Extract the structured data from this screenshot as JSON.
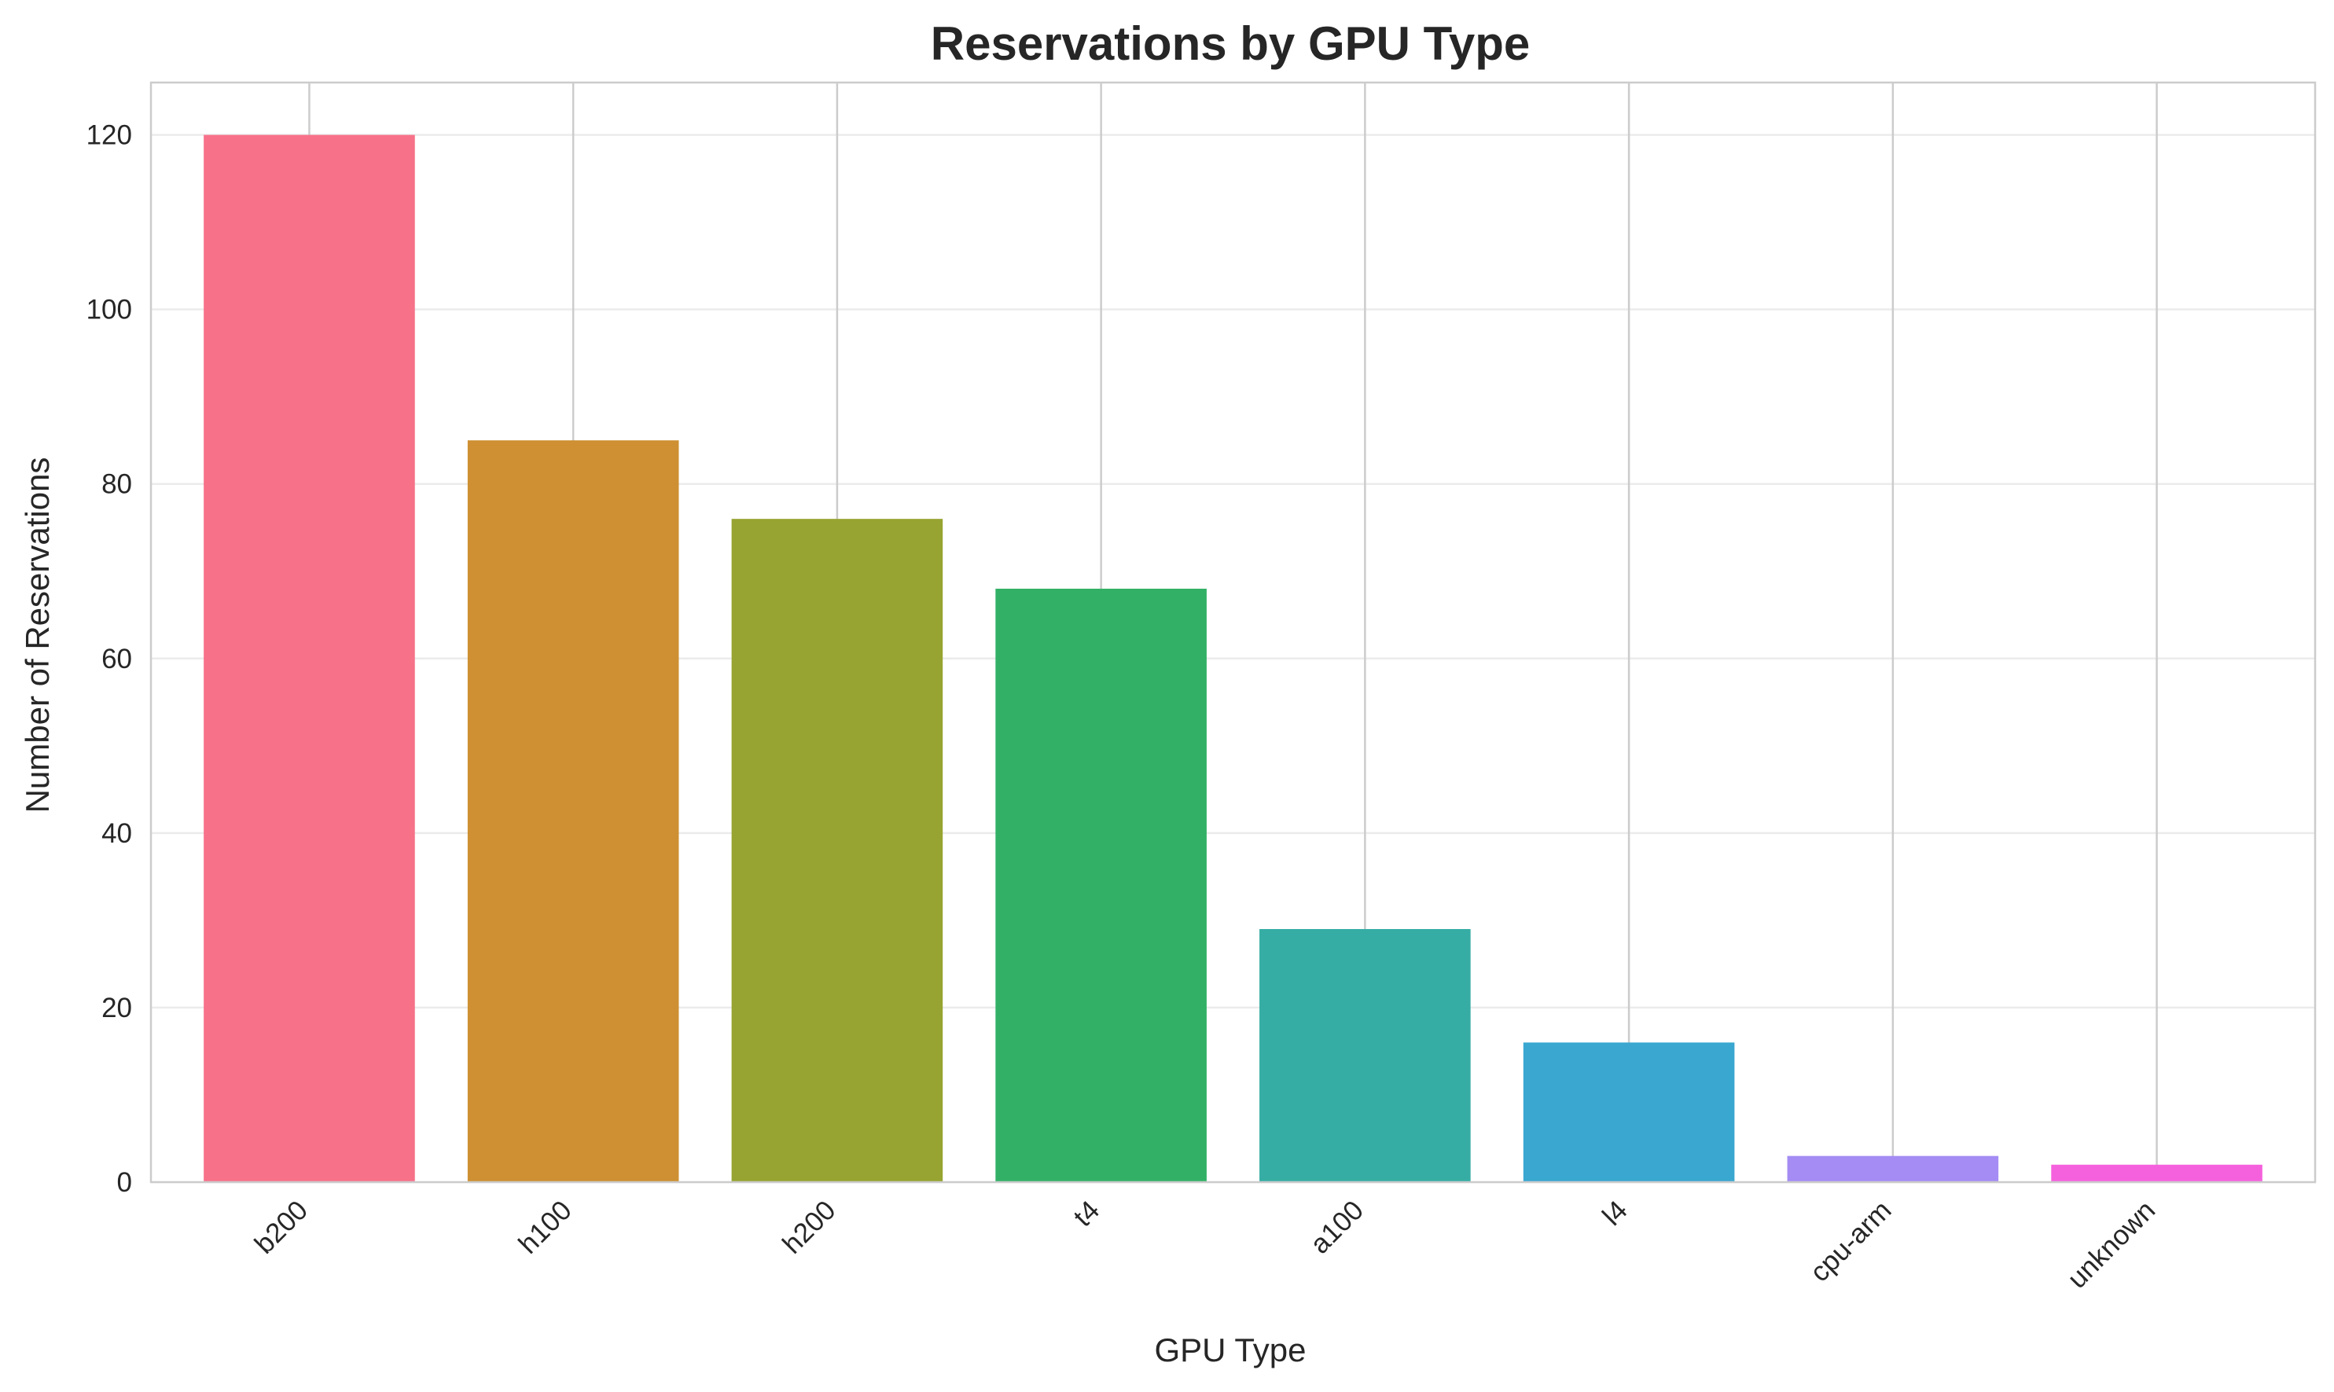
{
  "chart_data": {
    "type": "bar",
    "title": "Reservations by GPU Type",
    "xlabel": "GPU Type",
    "ylabel": "Number of Reservations",
    "categories": [
      "b200",
      "h100",
      "h200",
      "t4",
      "a100",
      "l4",
      "cpu-arm",
      "unknown"
    ],
    "values": [
      120,
      85,
      76,
      68,
      29,
      16,
      3,
      2
    ],
    "colors": [
      "#f77189",
      "#ce9032",
      "#97a431",
      "#32b166",
      "#36ada4",
      "#39a7d0",
      "#a48cf4",
      "#f561dd"
    ],
    "ylim": [
      0,
      126
    ],
    "yticks": [
      0,
      20,
      40,
      60,
      80,
      100,
      120
    ],
    "grid": true,
    "legend": "none"
  }
}
